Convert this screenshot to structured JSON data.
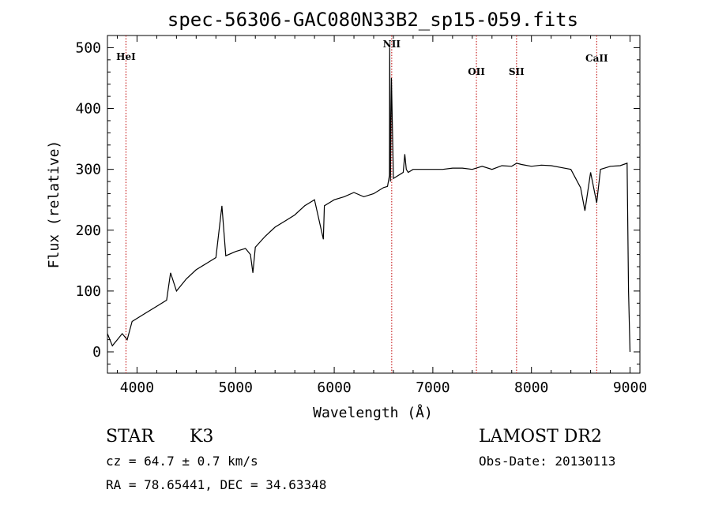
{
  "chart_data": {
    "type": "line",
    "title": "spec-56306-GAC080N33B2_sp15-059.fits",
    "xlabel": "Wavelength (Å)",
    "ylabel": "Flux (relative)",
    "xlim": [
      3700,
      9100
    ],
    "ylim": [
      -35,
      520
    ],
    "xticks": [
      "4000",
      "5000",
      "6000",
      "7000",
      "8000",
      "9000"
    ],
    "yticks": [
      "0",
      "100",
      "200",
      "300",
      "400",
      "500"
    ],
    "grid": false,
    "legend": "none",
    "line_color": "#000000",
    "marker_color": "#c00000",
    "spectrum": {
      "x": [
        3700,
        3750,
        3800,
        3850,
        3900,
        3950,
        4000,
        4100,
        4200,
        4300,
        4340,
        4400,
        4500,
        4600,
        4700,
        4800,
        4861,
        4900,
        5000,
        5100,
        5150,
        5175,
        5200,
        5300,
        5400,
        5500,
        5600,
        5700,
        5800,
        5890,
        5900,
        6000,
        6100,
        6200,
        6300,
        6400,
        6500,
        6540,
        6560,
        6563,
        6570,
        6580,
        6600,
        6650,
        6700,
        6716,
        6731,
        6750,
        6800,
        6900,
        7000,
        7100,
        7200,
        7300,
        7400,
        7500,
        7600,
        7700,
        7800,
        7850,
        7900,
        8000,
        8100,
        8200,
        8300,
        8400,
        8498,
        8542,
        8600,
        8662,
        8700,
        8800,
        8900,
        8970,
        8985,
        9000
      ],
      "y": [
        30,
        10,
        20,
        30,
        20,
        50,
        55,
        65,
        75,
        85,
        130,
        100,
        120,
        135,
        145,
        155,
        240,
        158,
        165,
        170,
        160,
        130,
        172,
        190,
        205,
        215,
        225,
        240,
        250,
        185,
        240,
        250,
        255,
        262,
        255,
        260,
        270,
        272,
        290,
        500,
        280,
        450,
        285,
        290,
        295,
        325,
        300,
        295,
        300,
        300,
        300,
        300,
        302,
        302,
        300,
        305,
        300,
        306,
        305,
        310,
        308,
        305,
        307,
        306,
        303,
        300,
        270,
        232,
        295,
        245,
        300,
        305,
        306,
        310,
        100,
        0
      ]
    },
    "line_markers": [
      {
        "label": "HeI",
        "x": 3888
      },
      {
        "label": "NII",
        "x": 6583
      },
      {
        "label": "OII",
        "x": 7442
      },
      {
        "label": "SII",
        "x": 7849
      },
      {
        "label": "CaII",
        "x": 8662
      }
    ]
  },
  "info": {
    "object_type": "STAR",
    "subclass": "K3",
    "cz": "cz = 64.7 ± 0.7 km/s",
    "radec": "RA =  78.65441, DEC =  34.63348",
    "survey": "LAMOST DR2",
    "obs_date": "Obs-Date: 20130113"
  }
}
